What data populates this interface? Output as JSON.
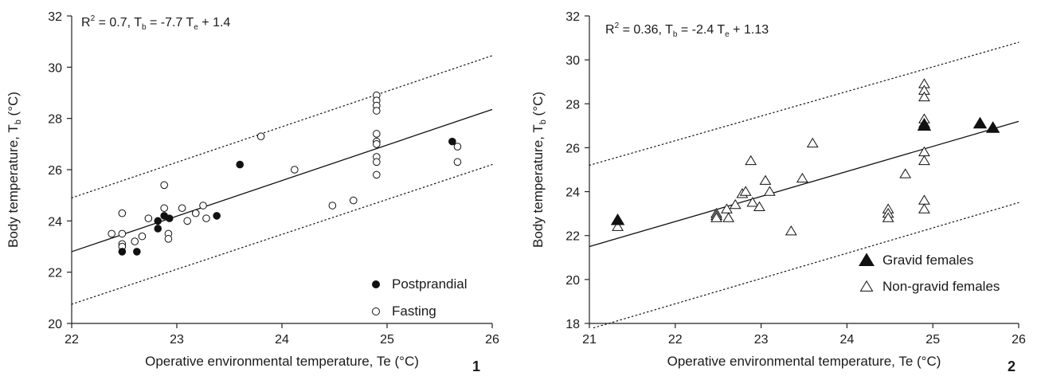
{
  "chart_data": [
    {
      "type": "scatter",
      "panel_label": "1",
      "xlabel": "Operative environmental temperature, Te (°C)",
      "ylabel": {
        "main": "Body temperature, T",
        "sub": "b",
        "unit": " (°C)"
      },
      "xlim": [
        22,
        26
      ],
      "ylim": [
        20,
        32
      ],
      "xticks": [
        "22",
        "23",
        "24",
        "25",
        "26"
      ],
      "yticks": [
        "20",
        "22",
        "24",
        "26",
        "28",
        "30",
        "32"
      ],
      "equation": {
        "r_label": "R",
        "r_exp": "2",
        "r_val": " = 0.7, T",
        "r_sub1": "b",
        "mid": " = -7.7 T",
        "r_sub2": "e",
        "tail": " + 1.4"
      },
      "regression": {
        "x": [
          22,
          26
        ],
        "y": [
          22.8,
          28.35
        ]
      },
      "ci_upper": {
        "x": [
          22,
          26
        ],
        "y": [
          24.9,
          30.45
        ]
      },
      "ci_lower": {
        "x": [
          22,
          26
        ],
        "y": [
          20.75,
          26.2
        ]
      },
      "legend": {
        "position": "bottom-right"
      },
      "series": [
        {
          "name": "Postprandial",
          "marker": "filled-circle",
          "points": [
            [
              22.48,
              22.8
            ],
            [
              22.62,
              22.8
            ],
            [
              22.82,
              23.7
            ],
            [
              22.82,
              24.0
            ],
            [
              22.88,
              24.2
            ],
            [
              22.93,
              24.1
            ],
            [
              23.38,
              24.2
            ],
            [
              23.6,
              26.2
            ],
            [
              25.62,
              27.1
            ]
          ]
        },
        {
          "name": "Fasting",
          "marker": "open-circle",
          "points": [
            [
              22.38,
              23.5
            ],
            [
              22.48,
              24.3
            ],
            [
              22.48,
              23.5
            ],
            [
              22.48,
              23.1
            ],
            [
              22.48,
              23.0
            ],
            [
              22.6,
              23.2
            ],
            [
              22.67,
              23.4
            ],
            [
              22.73,
              24.1
            ],
            [
              22.88,
              25.4
            ],
            [
              22.88,
              24.5
            ],
            [
              22.92,
              23.5
            ],
            [
              22.92,
              23.3
            ],
            [
              23.05,
              24.5
            ],
            [
              23.1,
              24.0
            ],
            [
              23.18,
              24.3
            ],
            [
              23.25,
              24.6
            ],
            [
              23.28,
              24.1
            ],
            [
              23.8,
              27.3
            ],
            [
              24.12,
              26.0
            ],
            [
              24.48,
              24.6
            ],
            [
              24.68,
              24.8
            ],
            [
              24.9,
              28.9
            ],
            [
              24.9,
              28.7
            ],
            [
              24.9,
              28.5
            ],
            [
              24.9,
              28.3
            ],
            [
              24.9,
              27.4
            ],
            [
              24.9,
              27.1
            ],
            [
              24.9,
              27.0
            ],
            [
              24.9,
              26.5
            ],
            [
              24.9,
              26.3
            ],
            [
              24.9,
              25.8
            ],
            [
              25.67,
              26.9
            ],
            [
              25.67,
              26.3
            ]
          ]
        }
      ]
    },
    {
      "type": "scatter",
      "panel_label": "2",
      "xlabel": "Operative environmental temperature, Te (°C)",
      "ylabel": {
        "main": "Body temperature, T",
        "sub": "b",
        "unit": " (°C)"
      },
      "xlim": [
        21,
        26
      ],
      "ylim": [
        18,
        32
      ],
      "xticks": [
        "21",
        "22",
        "23",
        "24",
        "25",
        "26"
      ],
      "yticks": [
        "18",
        "20",
        "22",
        "24",
        "26",
        "28",
        "30",
        "32"
      ],
      "equation": {
        "r_label": "R",
        "r_exp": "2",
        "r_val": " = 0.36, T",
        "r_sub1": "b",
        "mid": " = -2.4 T",
        "r_sub2": "e",
        "tail": " + 1.13"
      },
      "regression": {
        "x": [
          21,
          26
        ],
        "y": [
          21.5,
          27.2
        ]
      },
      "ci_upper": {
        "x": [
          21,
          26
        ],
        "y": [
          25.2,
          30.8
        ]
      },
      "ci_lower": {
        "x": [
          21.05,
          26
        ],
        "y": [
          17.8,
          23.5
        ]
      },
      "legend": {
        "position": "bottom-right"
      },
      "series": [
        {
          "name": "Gravid females",
          "marker": "filled-triangle",
          "points": [
            [
              21.33,
              22.7
            ],
            [
              24.9,
              27.0
            ],
            [
              25.55,
              27.1
            ],
            [
              25.7,
              26.9
            ]
          ]
        },
        {
          "name": "Non-gravid females",
          "marker": "open-triangle",
          "points": [
            [
              21.33,
              22.4
            ],
            [
              22.48,
              23.0
            ],
            [
              22.48,
              22.9
            ],
            [
              22.48,
              22.8
            ],
            [
              22.6,
              23.2
            ],
            [
              22.62,
              22.8
            ],
            [
              22.7,
              23.4
            ],
            [
              22.78,
              23.9
            ],
            [
              22.82,
              24.0
            ],
            [
              22.88,
              25.4
            ],
            [
              22.9,
              23.5
            ],
            [
              22.98,
              23.3
            ],
            [
              23.05,
              24.5
            ],
            [
              23.1,
              24.0
            ],
            [
              23.35,
              22.2
            ],
            [
              23.48,
              24.6
            ],
            [
              23.6,
              26.2
            ],
            [
              24.48,
              23.2
            ],
            [
              24.48,
              23.0
            ],
            [
              24.48,
              22.8
            ],
            [
              24.68,
              24.8
            ],
            [
              24.9,
              28.9
            ],
            [
              24.9,
              28.6
            ],
            [
              24.9,
              28.3
            ],
            [
              24.9,
              27.3
            ],
            [
              24.9,
              27.1
            ],
            [
              24.9,
              25.8
            ],
            [
              24.9,
              25.4
            ],
            [
              24.9,
              23.6
            ],
            [
              24.9,
              23.2
            ]
          ]
        }
      ]
    }
  ]
}
